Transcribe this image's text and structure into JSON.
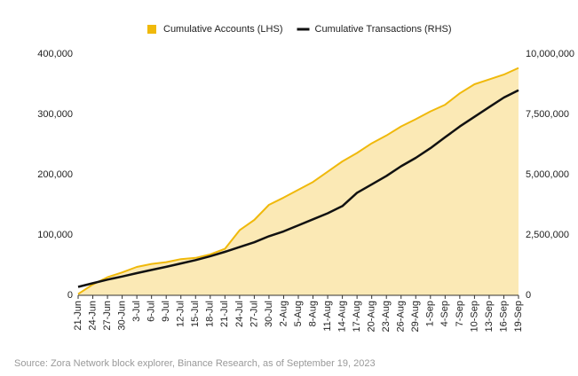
{
  "chart_data": {
    "type": "area-line",
    "categories": [
      "21-Jun",
      "24-Jun",
      "27-Jun",
      "30-Jun",
      "3-Jul",
      "6-Jul",
      "9-Jul",
      "12-Jul",
      "15-Jul",
      "18-Jul",
      "21-Jul",
      "24-Jul",
      "27-Jul",
      "30-Jul",
      "2-Aug",
      "5-Aug",
      "8-Aug",
      "11-Aug",
      "14-Aug",
      "17-Aug",
      "20-Aug",
      "23-Aug",
      "26-Aug",
      "29-Aug",
      "1-Sep",
      "4-Sep",
      "7-Sep",
      "10-Sep",
      "13-Sep",
      "16-Sep",
      "19-Sep"
    ],
    "series": [
      {
        "name": "Cumulative Accounts (LHS)",
        "color": "#f0b90b",
        "fill": "#fbe9b5",
        "values": [
          2000,
          18000,
          30000,
          38000,
          47000,
          52000,
          55000,
          60000,
          62000,
          68000,
          77000,
          108000,
          125000,
          150000,
          162000,
          175000,
          188000,
          205000,
          222000,
          236000,
          252000,
          265000,
          280000,
          292000,
          305000,
          316000,
          335000,
          350000,
          358000,
          366000,
          377000
        ]
      },
      {
        "name": "Cumulative Transactions (RHS)",
        "color": "#111111",
        "axis": "y2",
        "values": [
          350000,
          500000,
          650000,
          780000,
          920000,
          1050000,
          1180000,
          1320000,
          1460000,
          1620000,
          1800000,
          2000000,
          2200000,
          2450000,
          2650000,
          2900000,
          3150000,
          3400000,
          3700000,
          4250000,
          4600000,
          4950000,
          5350000,
          5700000,
          6100000,
          6550000,
          7000000,
          7400000,
          7800000,
          8200000,
          8500000
        ]
      }
    ],
    "ylim": [
      0,
      400000
    ],
    "yticks": [
      0,
      {
        "value": 100000,
        "label": "100,000"
      },
      {
        "value": 200000,
        "label": "200,000"
      },
      {
        "value": 300000,
        "label": "300,000"
      },
      {
        "value": 400000,
        "label": "400,000"
      }
    ],
    "y2lim": [
      0,
      10000000
    ],
    "y2ticks": [
      0,
      {
        "value": 2500000,
        "label": "2,500,000"
      },
      {
        "value": 5000000,
        "label": "5,000,000"
      },
      {
        "value": 7500000,
        "label": "7,500,000"
      },
      {
        "value": 10000000,
        "label": "10,000,000"
      }
    ],
    "grid": false,
    "legend": "top",
    "source": "Source: Zora Network block explorer, Binance Research,  as of September 19, 2023"
  }
}
